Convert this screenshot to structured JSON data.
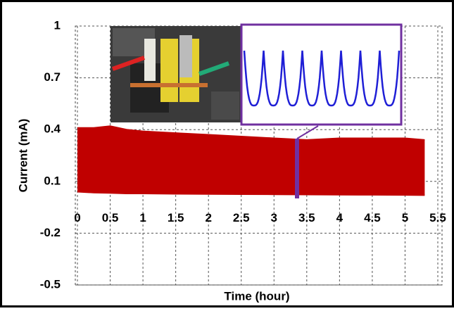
{
  "chart_data": {
    "type": "band",
    "x_label": "Time (hour)",
    "y_label": "Current (mA)",
    "x": [
      0,
      0.25,
      0.5,
      0.75,
      1,
      1.5,
      2,
      2.5,
      3,
      3.5,
      4,
      4.5,
      5,
      5.3
    ],
    "series": [
      {
        "color": "#c00000",
        "values": [
          0.41,
          0.41,
          0.42,
          0.4,
          0.39,
          0.38,
          0.37,
          0.36,
          0.35,
          0.34,
          0.35,
          0.35,
          0.35,
          0.34
        ]
      },
      {
        "color": "#c00000",
        "values": [
          0.04,
          0.035,
          0.033,
          0.03,
          0.03,
          0.028,
          0.027,
          0.026,
          0.025,
          0.024,
          0.023,
          0.022,
          0.021,
          0.02
        ]
      }
    ],
    "xlim": [
      0,
      5.5
    ],
    "xticks": [
      0,
      0.5,
      1,
      1.5,
      2,
      2.5,
      3,
      3.5,
      4,
      4.5,
      5,
      5.5
    ],
    "ylim": [
      -0.5,
      1
    ],
    "yticks": [
      -0.5,
      -0.2,
      0.1,
      0.4,
      0.7,
      1
    ],
    "grid": true
  }
}
